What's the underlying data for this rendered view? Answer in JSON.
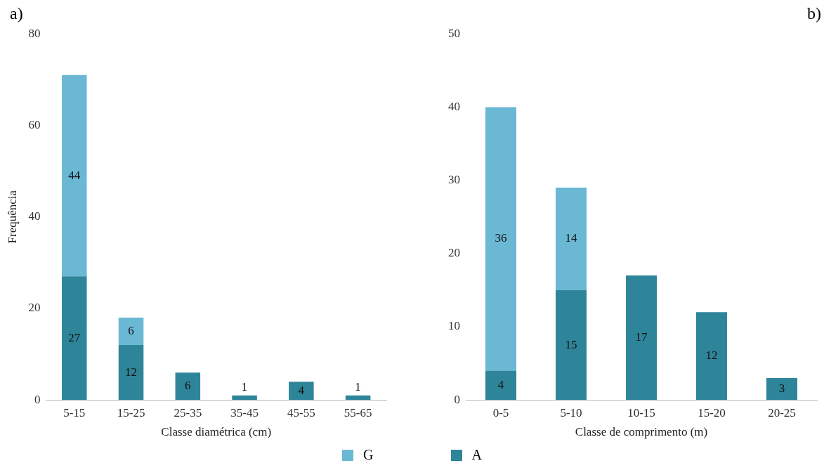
{
  "chart_data": [
    {
      "type": "bar",
      "annotations": [
        "a)"
      ],
      "xlabel": "Classe diamétrica (cm)",
      "ylabel": "Frequência",
      "categories": [
        "5-15",
        "15-25",
        "25-35",
        "35-45",
        "45-55",
        "55-65"
      ],
      "stacked": true,
      "data_labels": true,
      "ylim": [
        0,
        80
      ],
      "yticks": [
        0,
        20,
        40,
        60,
        80
      ],
      "grid": false,
      "legend": "bottom",
      "series": [
        {
          "name": "A",
          "color": "#2e8599",
          "values": [
            27,
            12,
            6,
            1,
            4,
            1
          ]
        },
        {
          "name": "G",
          "color": "#6bb8d4",
          "values": [
            44,
            6,
            null,
            null,
            null,
            null
          ]
        }
      ]
    },
    {
      "type": "bar",
      "annotations": [
        "b)"
      ],
      "xlabel": "Classe de comprimento (m)",
      "categories": [
        "0-5",
        "5-10",
        "10-15",
        "15-20",
        "20-25"
      ],
      "stacked": true,
      "data_labels": true,
      "ylim": [
        0,
        50
      ],
      "yticks": [
        0,
        10,
        20,
        30,
        40,
        50
      ],
      "grid": false,
      "legend": "bottom",
      "series": [
        {
          "name": "A",
          "color": "#2e8599",
          "values": [
            4,
            15,
            17,
            12,
            3
          ]
        },
        {
          "name": "G",
          "color": "#6bb8d4",
          "values": [
            36,
            14,
            null,
            null,
            null
          ]
        }
      ]
    }
  ]
}
